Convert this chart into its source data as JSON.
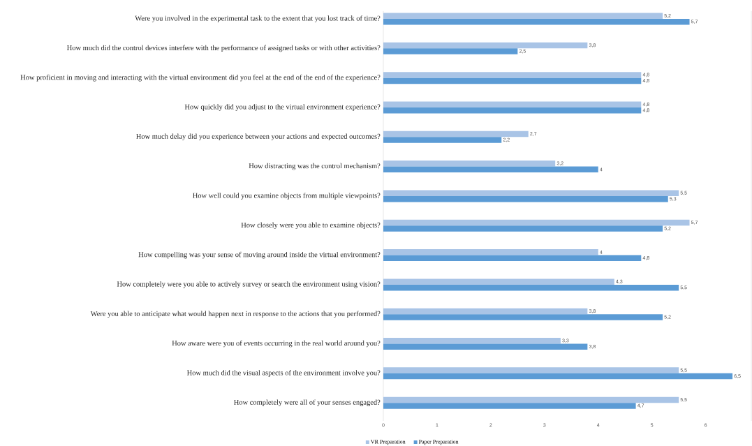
{
  "chart_data": {
    "type": "bar",
    "orientation": "horizontal",
    "legend": "bottom",
    "categories": [
      "Were you involved in the experimental task to the extent that you lost track of time?",
      "How much did the control devices interfere with the performance of assigned tasks or with other activities?",
      "How proficient in moving and interacting with the virtual environment did you feel at the end of the end of the experience?",
      "How quickly did you adjust to the virtual environment experience?",
      "How much delay did you experience between your actions and expected outcomes?",
      "How distracting was the control mechanism?",
      "How well could you examine objects from multiple viewpoints?",
      "How closely were you able to examine objects?",
      "How compelling was your sense of moving around inside the virtual environment?",
      "How completely were you able to actively survey or search the environment using vision?",
      "Were you able to anticipate what would happen next in response to the actions that you performed?",
      "How aware were you of events occurring in the real world around you?",
      "How much did the visual aspects of the environment involve you?",
      "How completely were all of your senses engaged?"
    ],
    "series": [
      {
        "name": "VR Preparation",
        "color": "#a9c4e6",
        "values": [
          5.2,
          3.8,
          4.8,
          4.8,
          2.7,
          3.2,
          5.5,
          5.7,
          4,
          4.3,
          3.8,
          3.3,
          5.5,
          5.5
        ],
        "value_labels": [
          "5,2",
          "3,8",
          "4,8",
          "4,8",
          "2,7",
          "3,2",
          "5,5",
          "5,7",
          "4",
          "4,3",
          "3,8",
          "3,3",
          "5,5",
          "5,5"
        ]
      },
      {
        "name": "Paper Preparation",
        "color": "#5b9bd5",
        "values": [
          5.7,
          2.5,
          4.8,
          4.8,
          2.2,
          4,
          5.3,
          5.2,
          4.8,
          5.5,
          5.2,
          3.8,
          6.5,
          4.7
        ],
        "value_labels": [
          "5,7",
          "2,5",
          "4,8",
          "4,8",
          "2,2",
          "4",
          "5,3",
          "5,2",
          "4,8",
          "5,5",
          "5,2",
          "3,8",
          "6,5",
          "4,7"
        ]
      }
    ],
    "xlim": [
      0,
      6.85
    ],
    "xticks": [
      0,
      1,
      2,
      3,
      4,
      5,
      6
    ]
  }
}
